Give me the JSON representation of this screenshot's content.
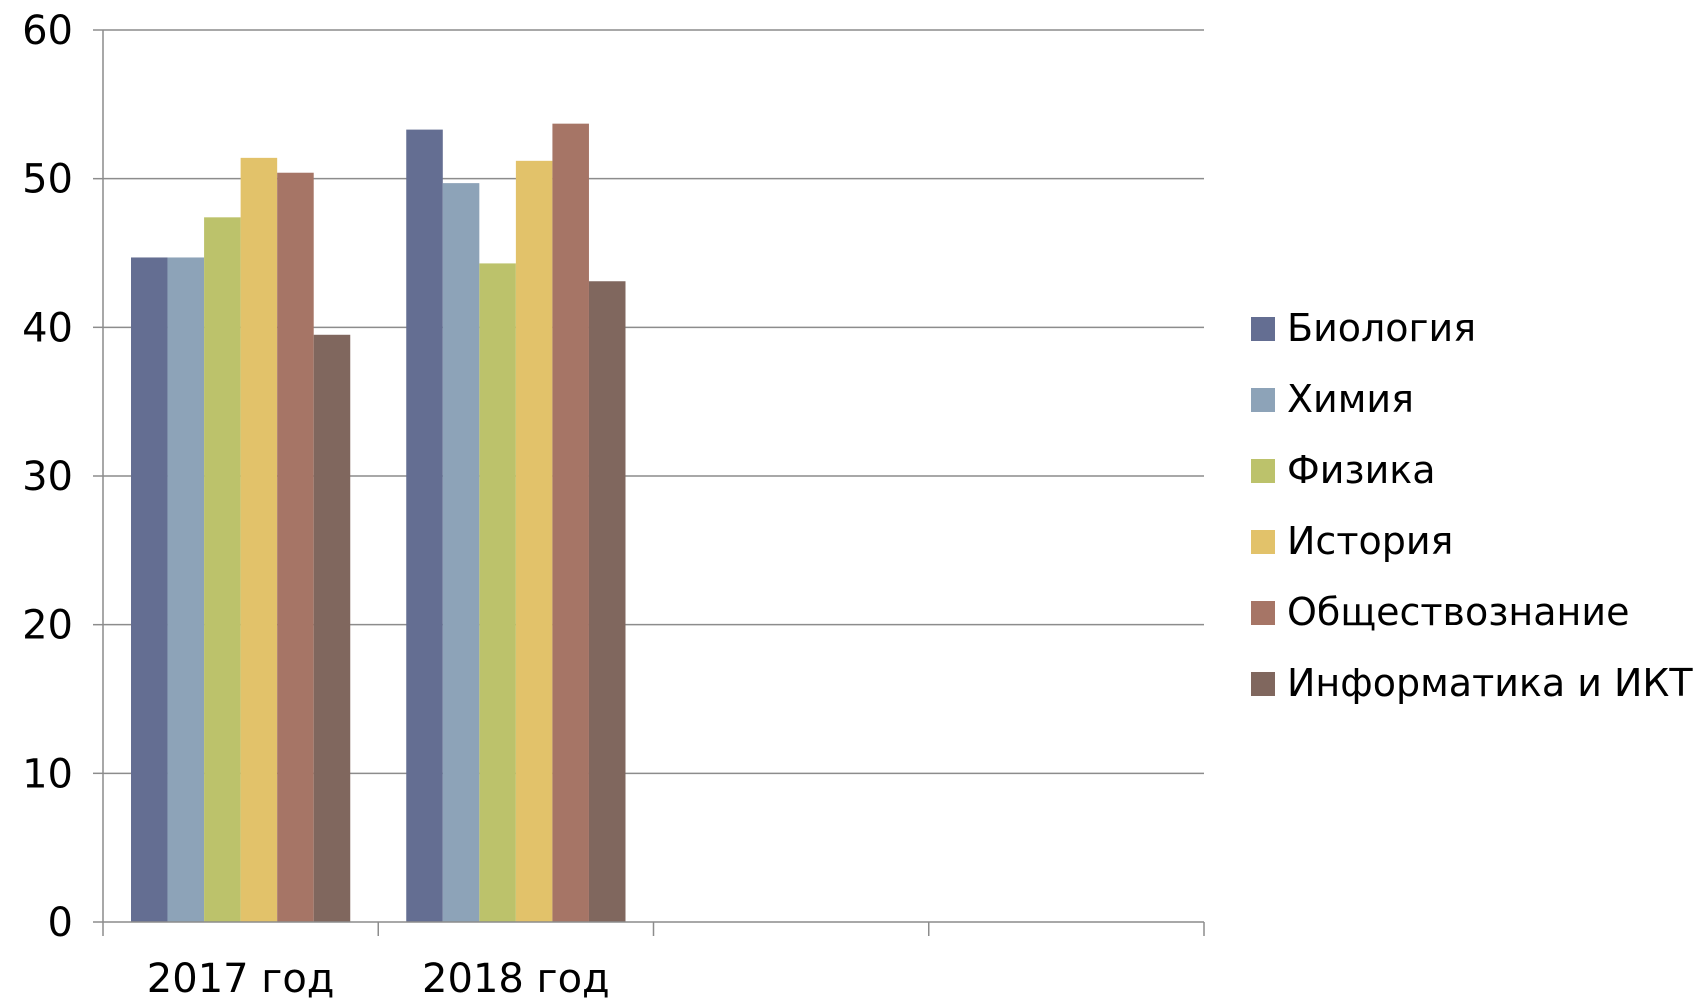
{
  "chart_data": {
    "type": "bar",
    "title": "",
    "xlabel": "",
    "ylabel": "",
    "ylim": [
      0,
      60
    ],
    "yticks": [
      "0",
      "10",
      "20",
      "30",
      "40",
      "50",
      "60"
    ],
    "grid": true,
    "legend_position": "right",
    "slot_count": 4,
    "categories": [
      "2017 год",
      "2018 год"
    ],
    "series": [
      {
        "name": "Биология",
        "color": "#646E92",
        "values": [
          44.7,
          53.3
        ]
      },
      {
        "name": "Химия",
        "color": "#8DA3B8",
        "values": [
          44.7,
          49.7
        ]
      },
      {
        "name": "Физика",
        "color": "#BCC26B",
        "values": [
          47.4,
          44.3
        ]
      },
      {
        "name": "История",
        "color": "#E2C26A",
        "values": [
          51.4,
          51.2
        ]
      },
      {
        "name": "Обществознание",
        "color": "#A67566",
        "values": [
          50.4,
          53.7
        ]
      },
      {
        "name": "Информатика и ИКТ",
        "color": "#80675E",
        "values": [
          39.5,
          43.1
        ]
      }
    ]
  }
}
